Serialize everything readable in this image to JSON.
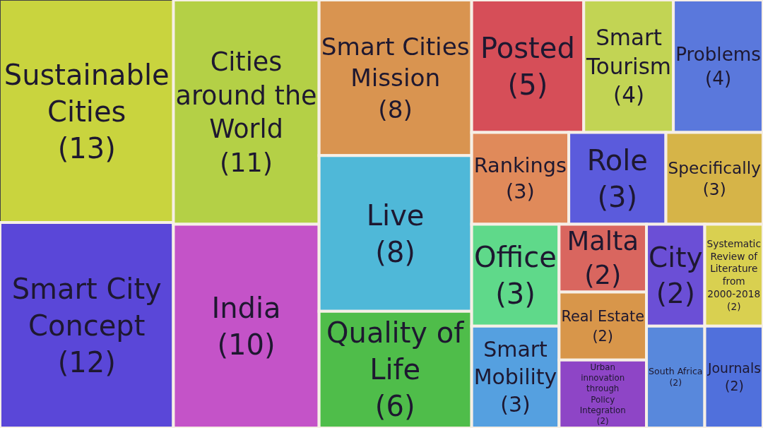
{
  "chart_data": {
    "type": "other",
    "categories": [
      "Malta",
      "Rankings",
      "Real Estate",
      "Smart Cities Mission",
      "Posted",
      "India",
      "Urban innovation through Policy Integration",
      "City",
      "Smart City Concept",
      "Role",
      "Specifically",
      "Sustainable Cities",
      "Systematic Review of Literature from 2000-2018",
      "Cities around the World",
      "Smart Tourism",
      "Quality of Life",
      "Office",
      "Live",
      "Smart Mobility",
      "Problems",
      "South Africa",
      "Journals"
    ],
    "values": [
      2,
      3,
      2,
      8,
      5,
      10,
      2,
      2,
      12,
      3,
      3,
      13,
      2,
      11,
      4,
      6,
      3,
      8,
      3,
      4,
      2,
      2
    ],
    "value_labels": [
      "(2)",
      "(3)",
      "(2)",
      "(8)",
      "(5)",
      "(10)",
      "(2)",
      "(2)",
      "(12)",
      "(3)",
      "(3)",
      "(13)",
      "(2)",
      "(11)",
      "(4)",
      "(6)",
      "(3)",
      "(8)",
      "(3)",
      "(4)",
      "(2)",
      "(2)"
    ],
    "colors": [
      "#d9665f",
      "#e08a5a",
      "#d8964a",
      "#d99450",
      "#d64e58",
      "#c453c8",
      "#8e45c6",
      "#6b4fd6",
      "#5a47d8",
      "#5b5bdc",
      "#d6b448",
      "#c9d43e",
      "#d9d050",
      "#b4d046",
      "#c2d454",
      "#4fbd4a",
      "#5fd98a",
      "#4fb8d8",
      "#55a0e0",
      "#5a78dc",
      "#5888dc",
      "#5070dc"
    ]
  }
}
